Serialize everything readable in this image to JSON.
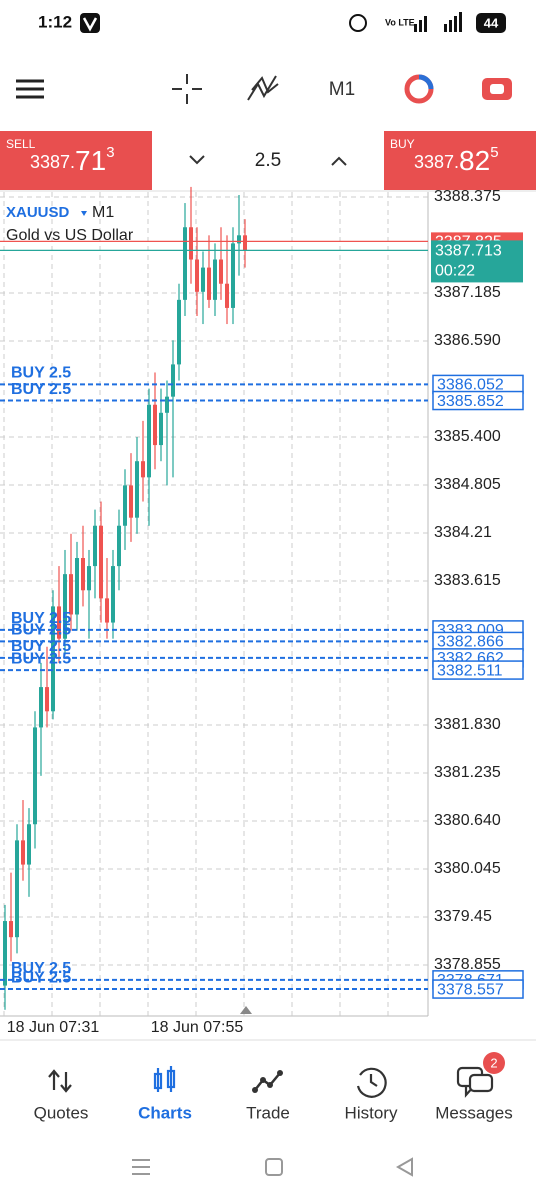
{
  "status_bar": {
    "time": "1:12",
    "battery": "44"
  },
  "toolbar": {
    "timeframe": "M1"
  },
  "trade_panel": {
    "sell": {
      "label": "SELL",
      "price_main": "3387.",
      "price_big": "71",
      "price_sup": "3"
    },
    "lot": "2.5",
    "buy": {
      "label": "BUY",
      "price_main": "3387.",
      "price_big": "82",
      "price_sup": "5"
    }
  },
  "chart_data": {
    "type": "candlestick",
    "symbol": "XAUUSD",
    "timeframe": "M1",
    "description": "Gold vs US Dollar",
    "categories": [
      null,
      null,
      null,
      null,
      null,
      null,
      null,
      null,
      "18 Jun 07:31",
      null,
      null,
      null,
      null,
      null,
      null,
      null,
      null,
      null,
      null,
      null,
      null,
      null,
      null,
      null,
      null,
      null,
      null,
      null,
      null,
      null,
      null,
      null,
      "18 Jun 07:55",
      null,
      null,
      null,
      null,
      null,
      null,
      null,
      null
    ],
    "open": [
      3378.6,
      3379.4,
      3379.2,
      3380.4,
      3380.1,
      3380.6,
      3381.8,
      3382.3,
      3382.0,
      3383.3,
      3382.9,
      3383.7,
      3383.2,
      3383.9,
      3383.5,
      3383.8,
      3384.3,
      3383.4,
      3383.1,
      3383.8,
      3384.3,
      3384.8,
      3384.4,
      3385.1,
      3384.9,
      3385.8,
      3385.3,
      3385.7,
      3385.9,
      3386.3,
      3387.1,
      3388.0,
      3387.6,
      3387.2,
      3387.5,
      3387.1,
      3387.6,
      3387.3,
      3387.0,
      3387.8,
      3387.9
    ],
    "high": [
      3379.6,
      3380.0,
      3380.6,
      3380.9,
      3380.8,
      3382.0,
      3382.6,
      3382.8,
      3383.5,
      3383.8,
      3384.0,
      3384.2,
      3384.1,
      3384.3,
      3384.0,
      3384.5,
      3384.6,
      3383.9,
      3384.0,
      3384.5,
      3385.0,
      3385.2,
      3385.4,
      3385.6,
      3386.0,
      3386.2,
      3386.0,
      3386.1,
      3386.6,
      3387.3,
      3388.3,
      3388.5,
      3388.0,
      3387.7,
      3387.9,
      3387.8,
      3388.0,
      3387.9,
      3388.0,
      3388.4,
      3388.1
    ],
    "low": [
      3378.3,
      3378.9,
      3379.0,
      3379.9,
      3379.7,
      3380.3,
      3381.2,
      3381.8,
      3381.9,
      3382.6,
      3382.7,
      3383.0,
      3383.0,
      3383.3,
      3382.9,
      3383.4,
      3383.1,
      3382.9,
      3382.9,
      3383.5,
      3384.0,
      3384.1,
      3384.2,
      3384.6,
      3384.3,
      3385.0,
      3385.1,
      3384.8,
      3384.9,
      3386.1,
      3386.9,
      3387.3,
      3386.9,
      3386.8,
      3387.0,
      3386.9,
      3387.1,
      3386.8,
      3386.8,
      3387.4,
      3387.5
    ],
    "close": [
      3379.4,
      3379.2,
      3380.4,
      3380.1,
      3380.6,
      3381.8,
      3382.3,
      3382.0,
      3383.3,
      3382.9,
      3383.7,
      3383.2,
      3383.9,
      3383.5,
      3383.8,
      3384.3,
      3383.4,
      3383.1,
      3383.8,
      3384.3,
      3384.8,
      3384.4,
      3385.1,
      3384.9,
      3385.8,
      3385.3,
      3385.7,
      3385.9,
      3386.3,
      3387.1,
      3388.0,
      3387.6,
      3387.2,
      3387.5,
      3387.1,
      3387.6,
      3387.3,
      3387.0,
      3387.8,
      3387.9,
      3387.713
    ],
    "up_color": "#26a69a",
    "down_color": "#ef5350",
    "ylim": [
      3378.223,
      3388.437
    ],
    "yticks": [
      3388.375,
      3387.185,
      {
        "value": 3386.59,
        "label": "3386.590"
      },
      {
        "value": 3385.4,
        "label": "3385.400"
      },
      3384.805,
      3384.21,
      3383.615,
      {
        "value": 3381.83,
        "label": "3381.830"
      },
      3381.235,
      {
        "value": 3380.64,
        "label": "3380.640"
      },
      3380.045,
      3379.45,
      3378.855
    ],
    "grid": true,
    "bid": 3387.713,
    "ask": 3387.825,
    "countdown": "00:22",
    "order_color": "#1f6fe0",
    "order_lines": [
      {
        "label": "BUY 2.5",
        "price": 3386.052
      },
      {
        "label": "BUY 2.5",
        "price": 3385.852
      },
      {
        "label": "BUY 2.5",
        "price": 3383.009
      },
      {
        "label": "BUY 2.5",
        "price": 3382.866
      },
      {
        "label": "BUY 2.5",
        "price": 3382.662
      },
      {
        "label": "BUY 2.5",
        "price": 3382.511
      },
      {
        "label": "BUY 2.5",
        "price": 3378.671
      },
      {
        "label": "BUY 2.5",
        "price": 3378.557
      }
    ]
  },
  "nav": {
    "items": [
      "Quotes",
      "Charts",
      "Trade",
      "History",
      "Messages"
    ],
    "badge": "2"
  }
}
